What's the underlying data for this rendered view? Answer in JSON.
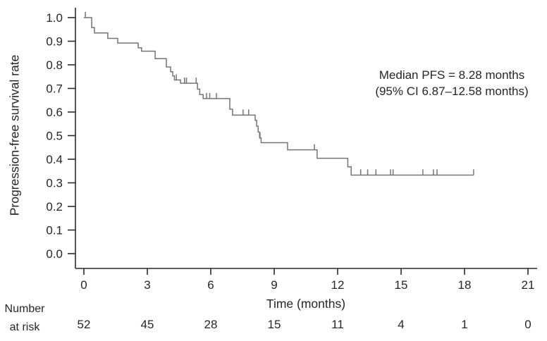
{
  "figure": {
    "y_axis_title": "Progression-free survival rate",
    "x_axis_title": "Time (months)",
    "annotation_line1": "Median PFS = 8.28 months",
    "annotation_line2": "(95% CI 6.87–12.58 months)",
    "risk_label_line1": "Number",
    "risk_label_line2": "at risk",
    "colors": {
      "curve": "#73737b",
      "axis": "#2b2b2b",
      "text": "#26262b"
    }
  },
  "chart_data": {
    "type": "line",
    "subtype": "kaplan-meier-step-curve",
    "title": "",
    "xlabel": "Time (months)",
    "ylabel": "Progression-free survival rate",
    "xlim": [
      0,
      21
    ],
    "ylim": [
      0.0,
      1.0
    ],
    "grid": false,
    "x_ticks": [
      0,
      3,
      6,
      9,
      12,
      15,
      18,
      21
    ],
    "y_tick_labels": [
      "0.0",
      "0.1",
      "0.2",
      "0.3",
      "0.4",
      "0.5",
      "0.6",
      "0.7",
      "0.8",
      "0.9",
      "1.0"
    ],
    "annotation": [
      "Median PFS = 8.28 months",
      "(95% CI 6.87–12.58 months)"
    ],
    "median_pfs_months": 8.28,
    "ci_95_months": [
      6.87,
      12.58
    ],
    "series": [
      {
        "name": "Progression-free survival",
        "steps": [
          [
            0,
            1.0
          ],
          [
            0.37,
            0.958
          ],
          [
            0.5,
            0.935
          ],
          [
            1.13,
            0.912
          ],
          [
            1.6,
            0.892
          ],
          [
            2.57,
            0.872
          ],
          [
            2.73,
            0.858
          ],
          [
            3.37,
            0.826
          ],
          [
            3.9,
            0.791
          ],
          [
            4.1,
            0.771
          ],
          [
            4.2,
            0.753
          ],
          [
            4.28,
            0.736
          ],
          [
            4.57,
            0.722
          ],
          [
            5.37,
            0.697
          ],
          [
            5.48,
            0.674
          ],
          [
            5.64,
            0.657
          ],
          [
            6.9,
            0.612
          ],
          [
            7.03,
            0.587
          ],
          [
            8.1,
            0.565
          ],
          [
            8.17,
            0.54
          ],
          [
            8.24,
            0.515
          ],
          [
            8.31,
            0.49
          ],
          [
            8.38,
            0.47
          ],
          [
            9.63,
            0.44
          ],
          [
            11.03,
            0.404
          ],
          [
            12.48,
            0.368
          ],
          [
            12.64,
            0.333
          ]
        ],
        "end_time": 18.43,
        "censor_marks": [
          [
            0.07,
            1.0
          ],
          [
            4.37,
            0.736
          ],
          [
            4.76,
            0.722
          ],
          [
            4.85,
            0.722
          ],
          [
            5.31,
            0.722
          ],
          [
            5.8,
            0.657
          ],
          [
            5.95,
            0.657
          ],
          [
            6.27,
            0.657
          ],
          [
            7.53,
            0.587
          ],
          [
            7.79,
            0.587
          ],
          [
            8.33,
            0.49
          ],
          [
            10.9,
            0.44
          ],
          [
            13.09,
            0.333
          ],
          [
            13.42,
            0.333
          ],
          [
            13.81,
            0.333
          ],
          [
            14.5,
            0.333
          ],
          [
            14.62,
            0.333
          ],
          [
            16.03,
            0.333
          ],
          [
            16.53,
            0.333
          ],
          [
            16.7,
            0.333
          ],
          [
            18.43,
            0.333
          ]
        ]
      }
    ],
    "number_at_risk": {
      "label": "Number at risk",
      "times": [
        0,
        3,
        6,
        9,
        12,
        15,
        18,
        21
      ],
      "values": [
        52,
        45,
        28,
        15,
        11,
        4,
        1,
        0
      ]
    }
  }
}
